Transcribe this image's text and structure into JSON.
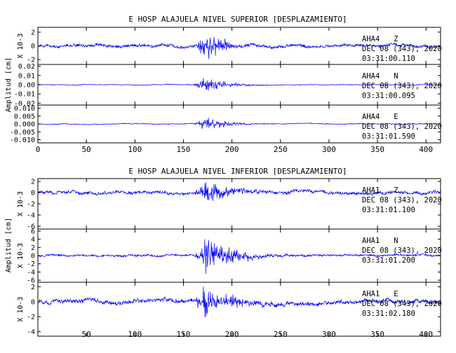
{
  "chart_data": [
    {
      "type": "line",
      "title": "E HOSP ALAJUELA NIVEL SUPERIOR [DESPLAZAMIENTO]",
      "ylabel": "Amplitud [cm]",
      "xlim": [
        0,
        415
      ],
      "x_ticks": [
        "0",
        "50",
        "100",
        "150",
        "200",
        "250",
        "300",
        "350",
        "400"
      ],
      "x_tick_values": [
        0,
        50,
        100,
        150,
        200,
        250,
        300,
        350,
        400
      ],
      "line_color": "#0000ff",
      "event_window": [
        160,
        215
      ],
      "event_peak": 175,
      "panels": [
        {
          "station": "AHA4",
          "component": "Z",
          "date": "DEC 08 (343), 2020",
          "time": "03:31:00.110",
          "scale_label": "X 10-3",
          "ylim": [
            -2.7,
            2.7
          ],
          "y_ticks": [
            "2",
            "0",
            "-2"
          ],
          "y_tick_values": [
            2,
            0,
            -2
          ],
          "peak_amplitude": 2.4,
          "noise_amplitude": 0.35
        },
        {
          "station": "AHA4",
          "component": "N",
          "date": "DEC 08 (343), 2020",
          "time": "03:31:00.095",
          "scale_label": "",
          "ylim": [
            -0.022,
            0.022
          ],
          "y_ticks": [
            "0.02",
            "0.01",
            "0.00",
            "-0.01",
            "-0.02"
          ],
          "y_tick_values": [
            0.02,
            0.01,
            0.0,
            -0.01,
            -0.02
          ],
          "peak_amplitude": 0.011,
          "noise_amplitude": 0.0006
        },
        {
          "station": "AHA4",
          "component": "E",
          "date": "DEC 08 (343), 2020",
          "time": "03:31:01.590",
          "scale_label": "",
          "ylim": [
            -0.012,
            0.012
          ],
          "y_ticks": [
            "0.010",
            "0.005",
            "0.000",
            "-0.005",
            "-0.010"
          ],
          "y_tick_values": [
            0.01,
            0.005,
            0.0,
            -0.005,
            -0.01
          ],
          "peak_amplitude": 0.006,
          "noise_amplitude": 0.0004
        }
      ]
    },
    {
      "type": "line",
      "title": "E HOSP ALAJUELA NIVEL INFERIOR [DESPLAZAMIENTO]",
      "ylabel": "Amplitud [cm]",
      "xlim": [
        0,
        415
      ],
      "x_ticks": [
        "50",
        "100",
        "150",
        "200",
        "250",
        "300",
        "350",
        "400"
      ],
      "x_tick_values": [
        50,
        100,
        150,
        200,
        250,
        300,
        350,
        400
      ],
      "line_color": "#0000ff",
      "event_window": [
        160,
        230
      ],
      "event_peak": 175,
      "panels": [
        {
          "station": "AHA1",
          "component": "Z",
          "date": "DEC 08 (343), 2020",
          "time": "03:31:01.100",
          "scale_label": "X 10-3",
          "ylim": [
            -6.5,
            2.5
          ],
          "y_ticks": [
            "2",
            "0",
            "-2",
            "-4",
            "-6"
          ],
          "y_tick_values": [
            2,
            0,
            -2,
            -4,
            -6
          ],
          "peak_amplitude": 2.3,
          "noise_amplitude": 0.45
        },
        {
          "station": "AHA1",
          "component": "N",
          "date": "DEC 08 (343), 2020",
          "time": "03:31:01.200",
          "scale_label": "X 10-3",
          "ylim": [
            -6.5,
            6.5
          ],
          "y_ticks": [
            "6",
            "4",
            "2",
            "0",
            "-2",
            "-4",
            "-6"
          ],
          "y_tick_values": [
            6,
            4,
            2,
            0,
            -2,
            -4,
            -6
          ],
          "peak_amplitude": 5.5,
          "noise_amplitude": 0.4
        },
        {
          "station": "AHA1",
          "component": "E",
          "date": "DEC 08 (343), 2020",
          "time": "03:31:02.180",
          "scale_label": "X 10-3",
          "ylim": [
            -4.6,
            2.6
          ],
          "y_ticks": [
            "2",
            "0",
            "-2",
            "-4"
          ],
          "y_tick_values": [
            2,
            0,
            -2,
            -4
          ],
          "peak_amplitude": 2.8,
          "noise_amplitude": 0.45
        }
      ]
    }
  ]
}
